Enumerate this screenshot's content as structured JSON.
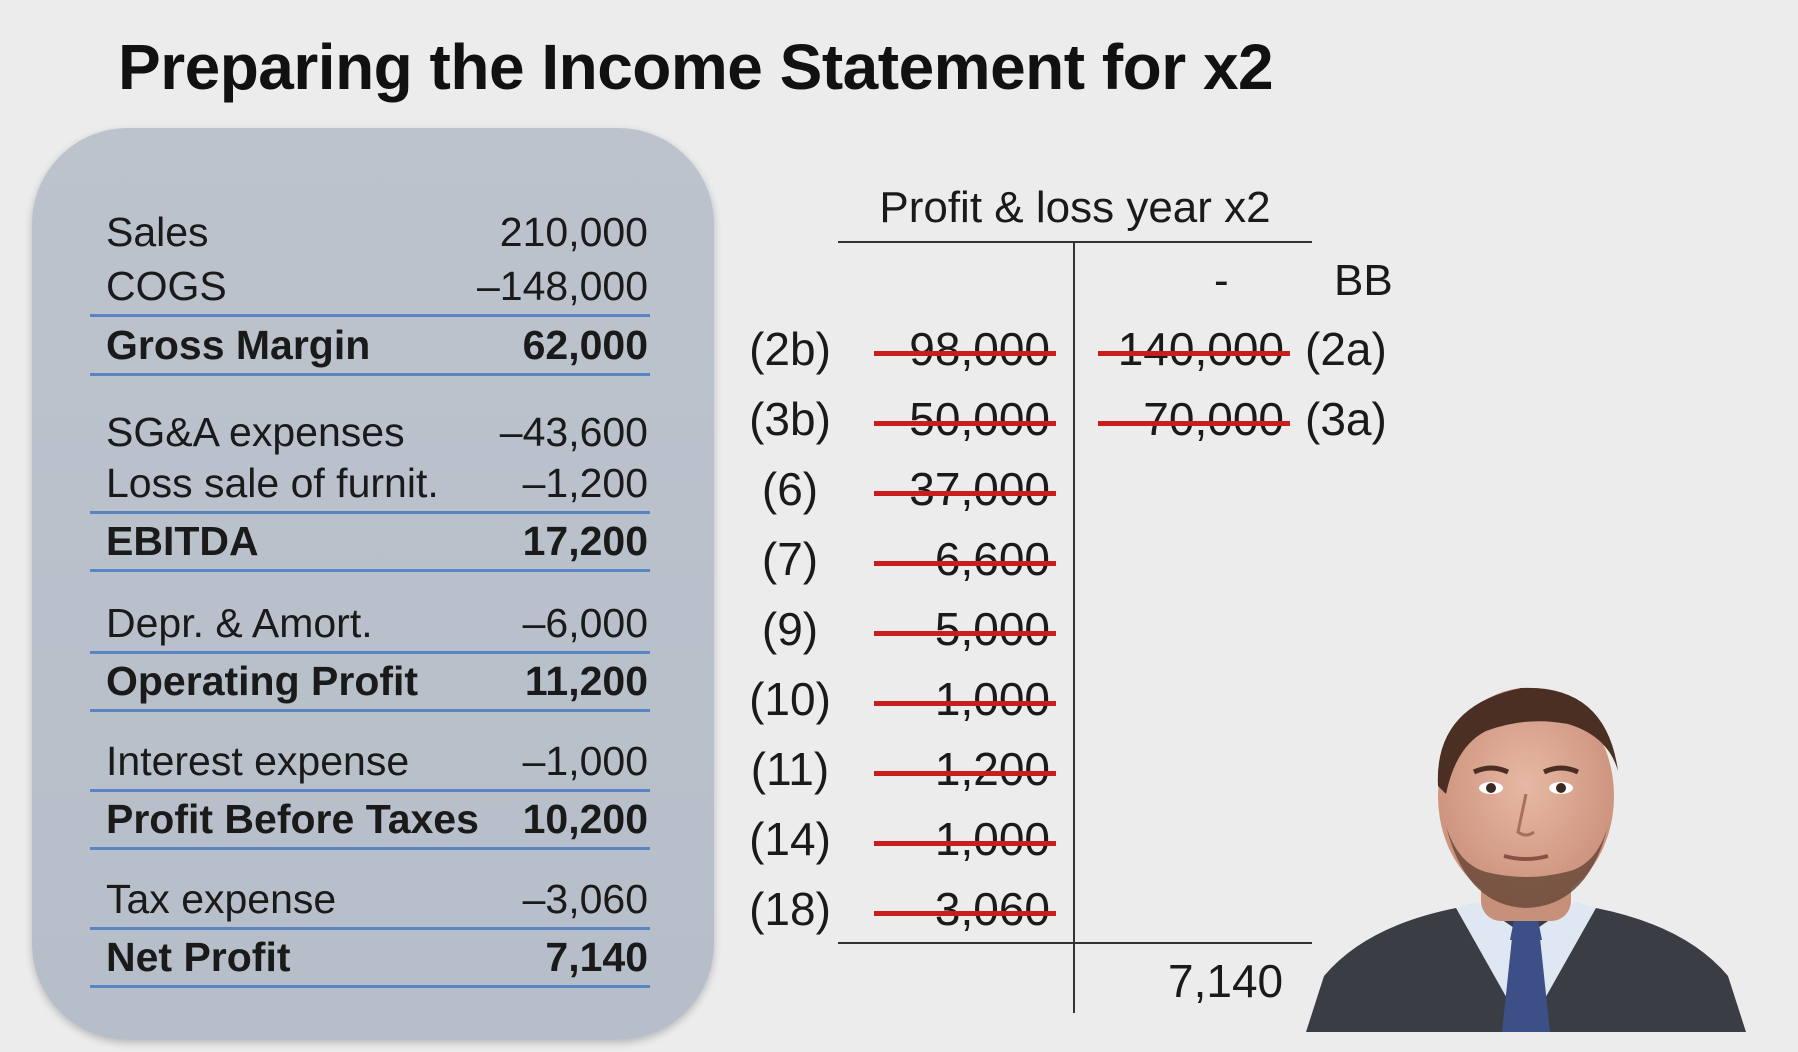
{
  "title": "Preparing the Income Statement for x2",
  "income_statement": {
    "rows": [
      {
        "label": "Sales",
        "value": "210,000"
      },
      {
        "label": "COGS",
        "value": "–148,000"
      },
      {
        "label": "Gross Margin",
        "value": "62,000"
      },
      {
        "label": "SG&A expenses",
        "value": "–43,600"
      },
      {
        "label": "Loss sale of furnit.",
        "value": "–1,200"
      },
      {
        "label": "EBITDA",
        "value": "17,200"
      },
      {
        "label": "Depr. & Amort.",
        "value": "–6,000"
      },
      {
        "label": "Operating Profit",
        "value": "11,200"
      },
      {
        "label": "Interest expense",
        "value": "–1,000"
      },
      {
        "label": "Profit Before Taxes",
        "value": "10,200"
      },
      {
        "label": "Tax expense",
        "value": "–3,060"
      },
      {
        "label": "Net Profit",
        "value": "7,140"
      }
    ]
  },
  "t_account": {
    "title": "Profit & loss year x2",
    "credit_header": {
      "amount": "-",
      "ref": "BB"
    },
    "debits": [
      {
        "ref": "(2b)",
        "amount": "98,000"
      },
      {
        "ref": "(3b)",
        "amount": "50,000"
      },
      {
        "ref": "(6)",
        "amount": "37,000"
      },
      {
        "ref": "(7)",
        "amount": "6,600"
      },
      {
        "ref": "(9)",
        "amount": "5,000"
      },
      {
        "ref": "(10)",
        "amount": "1,000"
      },
      {
        "ref": "(11)",
        "amount": "1,200"
      },
      {
        "ref": "(14)",
        "amount": "1,000"
      },
      {
        "ref": "(18)",
        "amount": "3,060"
      }
    ],
    "credits": [
      {
        "amount": "140,000",
        "ref": "(2a)"
      },
      {
        "amount": "70,000",
        "ref": "(3a)"
      }
    ],
    "credit_total": "7,140"
  },
  "colors": {
    "panel": "#b9c0ca",
    "rule_blue": "#5b84c3",
    "strike_red": "#c81e1e",
    "background": "#ececec"
  }
}
